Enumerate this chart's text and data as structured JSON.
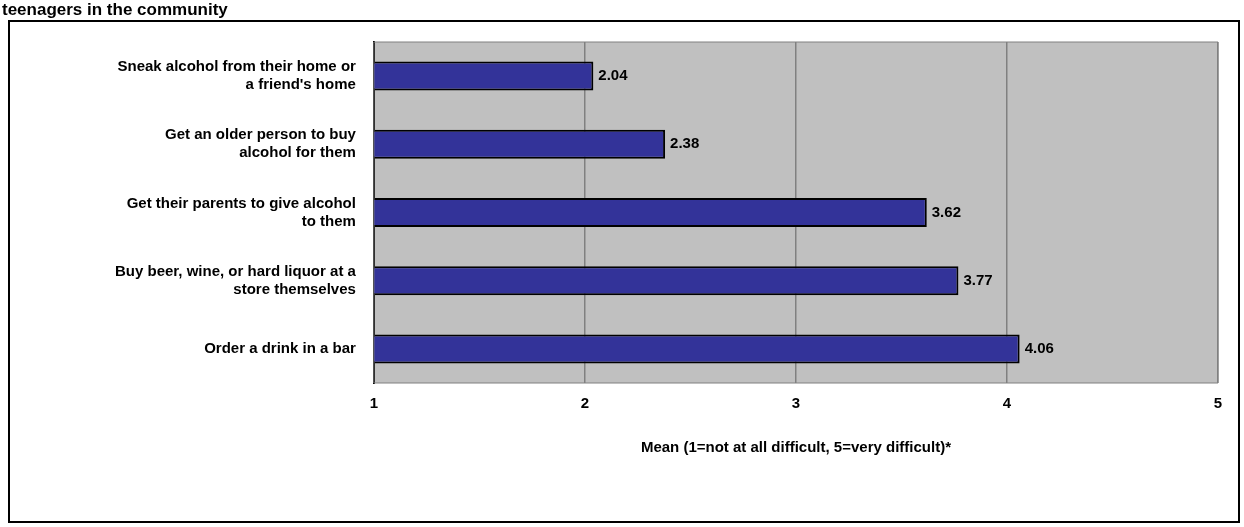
{
  "chart_data": {
    "type": "bar",
    "orientation": "horizontal",
    "title": "teenagers in the community",
    "categories": [
      "Sneak alcohol from their home or a friend's home",
      "Get an older person to buy alcohol for them",
      "Get their parents to give alcohol to them",
      "Buy beer, wine, or hard liquor at a store themselves",
      "Order a drink in a bar"
    ],
    "values": [
      2.04,
      2.38,
      3.62,
      3.77,
      4.06
    ],
    "color": "#333399",
    "xlim": [
      1,
      5
    ],
    "xticks": [
      1,
      2,
      3,
      4,
      5
    ],
    "grid": "x",
    "data_labels": true,
    "xlabel": "Mean (1=not at all difficult, 5=very difficult)*"
  }
}
